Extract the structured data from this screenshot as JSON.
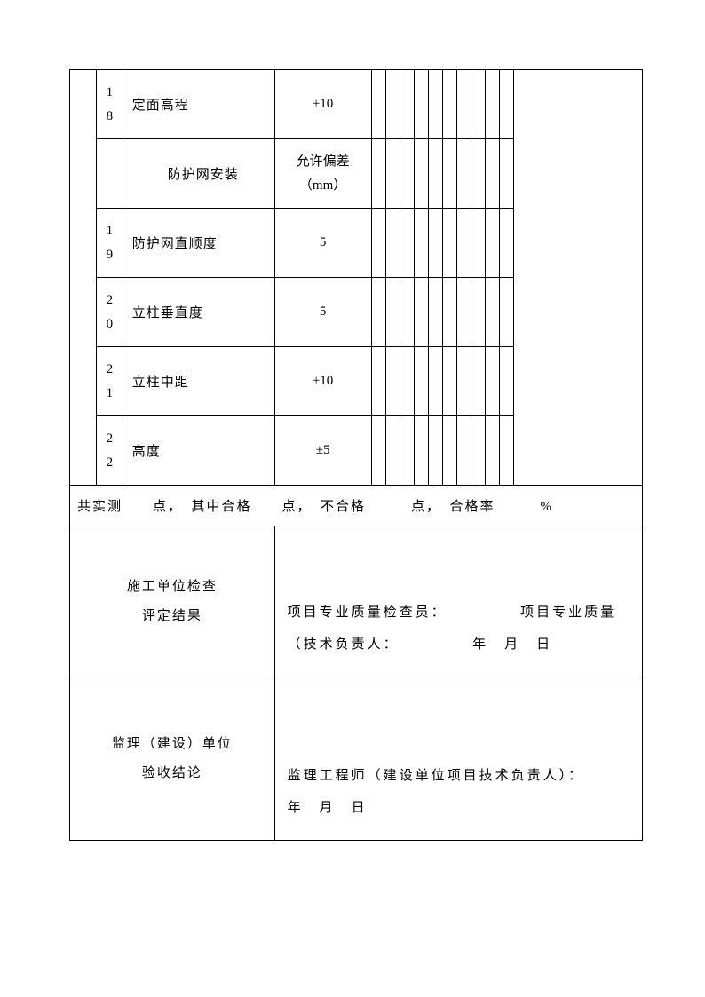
{
  "rows": [
    {
      "num_top": "1",
      "num_bot": "8",
      "name": "定面高程",
      "tolerance": "±10"
    },
    {
      "num_top": "",
      "num_bot": "",
      "name": "防护网安装",
      "tolerance_top": "允许偏差",
      "tolerance_bot": "（mm）"
    },
    {
      "num_top": "1",
      "num_bot": "9",
      "name": "防护网直顺度",
      "tolerance": "5"
    },
    {
      "num_top": "2",
      "num_bot": "0",
      "name": "立柱垂直度",
      "tolerance": "5"
    },
    {
      "num_top": "2",
      "num_bot": "1",
      "name": "立柱中距",
      "tolerance": "±10"
    },
    {
      "num_top": "2",
      "num_bot": "2",
      "name": "高度",
      "tolerance": "±5"
    }
  ],
  "summary": "共实测　　点，　其中合格　　点，　不合格　　　点，　合格率　　　%",
  "eval": {
    "label1_line1": "施工单位检查",
    "label1_line2": "评定结果",
    "content1": "项目专业质量检查员：　　　　　项目专业质量（技术负责人：　　　　　年　月　日",
    "label2_line1": "监理（建设）单位",
    "label2_line2": "验收结论",
    "content2": "监理工程师（建设单位项目技术负责人）：　　　　年　月　日"
  },
  "layout": {
    "narrow_cols": 10,
    "border_color": "#000000",
    "background_color": "#ffffff",
    "text_color": "#000000",
    "font_family": "SimSun",
    "base_font_size": 15
  }
}
